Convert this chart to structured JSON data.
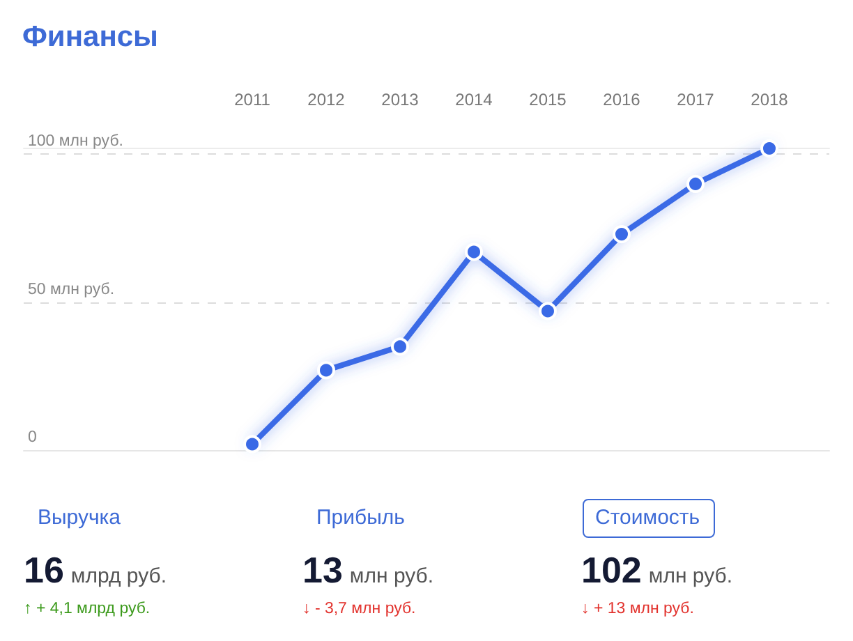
{
  "chart_data": [
    {
      "type": "line",
      "title": "Финансы",
      "categories": [
        "2011",
        "2012",
        "2013",
        "2014",
        "2015",
        "2016",
        "2017",
        "2018"
      ],
      "values": [
        2,
        27,
        35,
        67,
        47,
        73,
        90,
        102
      ],
      "color": "#3a6ae6",
      "ylim": [
        0,
        102
      ],
      "yticks": [
        0,
        {
          "value": 50,
          "label": "50 млн руб."
        },
        {
          "value": 100,
          "label": "100 млн руб."
        }
      ],
      "grid": "y",
      "marker": "circle"
    },
    {
      "type": "other",
      "annotations": [
        "Выручка",
        "16",
        "млрд руб.",
        "↑ + 4,1 млрд руб.",
        "Прибыль",
        "13",
        "млн руб.",
        "↓ - 3,7 млн руб.",
        "Стоимость",
        "102",
        "млн руб.",
        "↓ + 13 млн руб."
      ]
    }
  ]
}
